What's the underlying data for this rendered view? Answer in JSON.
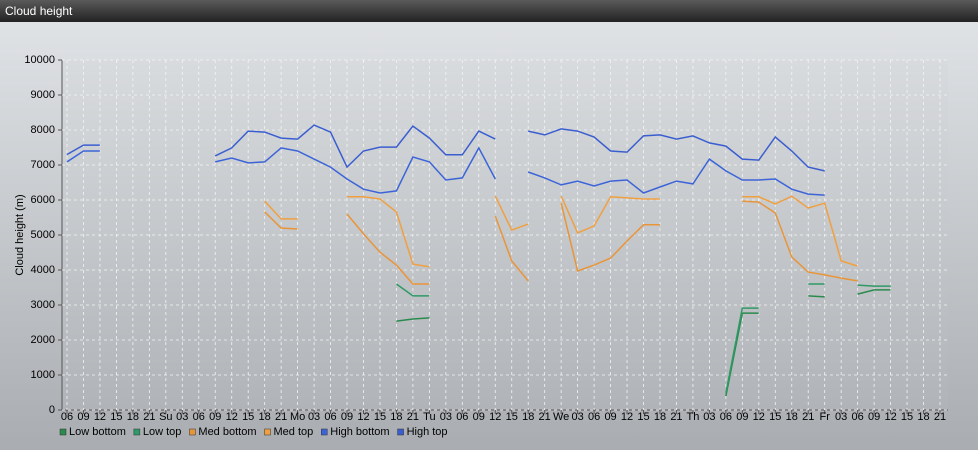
{
  "chart_data": {
    "type": "line",
    "title": "Cloud height",
    "y_label": "Cloud height (m)",
    "categories": [
      "06",
      "09",
      "12",
      "15",
      "18",
      "21",
      "Su",
      "03",
      "06",
      "09",
      "12",
      "15",
      "18",
      "21",
      "Mo",
      "03",
      "06",
      "09",
      "12",
      "15",
      "18",
      "21",
      "Tu",
      "03",
      "06",
      "09",
      "12",
      "15",
      "18",
      "21",
      "We",
      "03",
      "06",
      "09",
      "12",
      "15",
      "18",
      "21",
      "Th",
      "03",
      "06",
      "09",
      "12",
      "15",
      "18",
      "21",
      "Fr",
      "03",
      "06",
      "09",
      "12",
      "15",
      "18",
      "21"
    ],
    "ylim": [
      0,
      10000
    ],
    "yticks": [
      0,
      1000,
      2000,
      3000,
      4000,
      5000,
      6000,
      7000,
      8000,
      9000,
      10000
    ],
    "grid": true,
    "series": [
      {
        "name": "Low bottom",
        "color": "#2b8a4c",
        "values": [
          null,
          null,
          null,
          null,
          null,
          null,
          null,
          null,
          null,
          null,
          null,
          null,
          null,
          null,
          null,
          null,
          null,
          null,
          null,
          null,
          2540,
          2600,
          2630,
          null,
          null,
          null,
          null,
          null,
          null,
          null,
          null,
          null,
          null,
          null,
          null,
          null,
          null,
          null,
          null,
          null,
          400,
          2770,
          2770,
          null,
          null,
          3260,
          3230,
          null,
          3310,
          3430,
          3430,
          null,
          null,
          null
        ]
      },
      {
        "name": "Low top",
        "color": "#2f9a66",
        "values": [
          null,
          null,
          null,
          null,
          null,
          null,
          null,
          null,
          null,
          null,
          null,
          null,
          null,
          null,
          null,
          null,
          null,
          null,
          null,
          null,
          3600,
          3260,
          3260,
          null,
          null,
          null,
          null,
          null,
          null,
          null,
          null,
          null,
          null,
          null,
          null,
          null,
          null,
          null,
          null,
          null,
          490,
          2910,
          2910,
          null,
          null,
          3600,
          3600,
          null,
          3570,
          3540,
          3540,
          null,
          null,
          null
        ]
      },
      {
        "name": "Med bottom",
        "color": "#e8953a",
        "values": [
          null,
          null,
          null,
          null,
          null,
          null,
          null,
          null,
          null,
          null,
          null,
          null,
          5660,
          5200,
          5170,
          null,
          null,
          5600,
          5030,
          4510,
          4140,
          3600,
          3600,
          null,
          null,
          null,
          5540,
          4260,
          3690,
          null,
          5910,
          3970,
          4140,
          4340,
          4830,
          5290,
          5290,
          null,
          null,
          null,
          null,
          5970,
          5940,
          5630,
          4370,
          3940,
          3860,
          3770,
          3690,
          null,
          null,
          null,
          null,
          null
        ]
      },
      {
        "name": "Med top",
        "color": "#f0a040",
        "values": [
          null,
          null,
          null,
          null,
          null,
          null,
          null,
          null,
          null,
          null,
          null,
          null,
          5970,
          5460,
          5460,
          null,
          null,
          6090,
          6090,
          6030,
          5660,
          4170,
          4090,
          null,
          null,
          null,
          6110,
          5140,
          5310,
          null,
          6110,
          5060,
          5260,
          6090,
          6060,
          6030,
          6030,
          null,
          null,
          null,
          null,
          6090,
          6090,
          5890,
          6110,
          5770,
          5910,
          4260,
          4110,
          null,
          null,
          null,
          null,
          null
        ]
      },
      {
        "name": "High bottom",
        "color": "#3c64d8",
        "values": [
          7090,
          7400,
          7400,
          null,
          null,
          null,
          null,
          null,
          null,
          7090,
          7200,
          7060,
          7090,
          7490,
          7400,
          7170,
          6940,
          6600,
          6310,
          6200,
          6260,
          7230,
          7090,
          6570,
          6630,
          7490,
          6600,
          null,
          6800,
          6630,
          6430,
          6540,
          6400,
          6540,
          6570,
          6200,
          6370,
          6540,
          6460,
          7170,
          6830,
          6570,
          6570,
          6600,
          6310,
          6170,
          6140,
          null,
          null,
          null,
          null,
          null,
          null,
          null
        ]
      },
      {
        "name": "High top",
        "color": "#3a5ed0",
        "values": [
          7300,
          7570,
          7570,
          null,
          null,
          null,
          null,
          null,
          null,
          7260,
          7490,
          7970,
          7940,
          7770,
          7740,
          8140,
          7940,
          6940,
          7400,
          7510,
          7510,
          8110,
          7770,
          7290,
          7290,
          7970,
          7740,
          null,
          7970,
          7860,
          8030,
          7970,
          7800,
          7400,
          7370,
          7830,
          7860,
          7740,
          7830,
          7630,
          7540,
          7170,
          7140,
          7800,
          7400,
          6940,
          6830,
          null,
          null,
          null,
          null,
          null,
          null,
          null
        ]
      }
    ]
  }
}
